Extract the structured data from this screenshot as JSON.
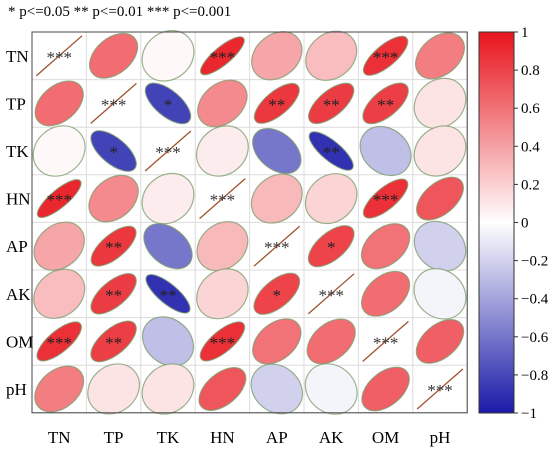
{
  "significance_note": "* p<=0.05  ** p<=0.01  *** p<=0.001",
  "chart_data": {
    "type": "heatmap",
    "variables": [
      "TN",
      "TP",
      "TK",
      "HN",
      "AP",
      "AK",
      "OM",
      "pH"
    ],
    "matrix": [
      [
        1.0,
        0.62,
        0.03,
        0.92,
        0.38,
        0.28,
        0.88,
        0.55
      ],
      [
        0.62,
        1.0,
        -0.82,
        0.5,
        0.85,
        0.83,
        0.82,
        0.12
      ],
      [
        0.03,
        -0.82,
        1.0,
        0.08,
        -0.6,
        -0.9,
        -0.28,
        0.12
      ],
      [
        0.92,
        0.5,
        0.08,
        1.0,
        0.3,
        0.18,
        0.88,
        0.72
      ],
      [
        0.38,
        0.85,
        -0.6,
        0.3,
        1.0,
        0.8,
        0.6,
        -0.2
      ],
      [
        0.28,
        0.83,
        -0.9,
        0.18,
        0.8,
        1.0,
        0.62,
        -0.05
      ],
      [
        0.88,
        0.82,
        -0.28,
        0.88,
        0.6,
        0.62,
        1.0,
        0.68
      ],
      [
        0.55,
        0.12,
        0.12,
        0.72,
        -0.2,
        -0.05,
        0.68,
        1.0
      ]
    ],
    "significance": [
      [
        "***",
        "",
        "",
        "***",
        "",
        "",
        "***",
        ""
      ],
      [
        "",
        "***",
        "*",
        "",
        "**",
        "**",
        "**",
        ""
      ],
      [
        "",
        "*",
        "***",
        "",
        "",
        "**",
        "",
        ""
      ],
      [
        "***",
        "",
        "",
        "***",
        "",
        "",
        "***",
        ""
      ],
      [
        "",
        "**",
        "",
        "",
        "***",
        "*",
        "",
        ""
      ],
      [
        "",
        "**",
        "**",
        "",
        "*",
        "***",
        "",
        ""
      ],
      [
        "***",
        "**",
        "",
        "***",
        "",
        "",
        "***",
        ""
      ],
      [
        "",
        "",
        "",
        "",
        "",
        "",
        "",
        "***"
      ]
    ],
    "colorbar": {
      "range": [
        -1,
        1
      ],
      "ticks": [
        -1,
        -0.8,
        -0.6,
        -0.4,
        -0.2,
        0,
        0.2,
        0.4,
        0.6,
        0.8,
        1
      ],
      "tick_labels": [
        "−1",
        "−0.8",
        "−0.6",
        "−0.4",
        "−0.2",
        "0",
        "0.2",
        "0.4",
        "0.6",
        "0.8",
        "1"
      ],
      "colors": {
        "negative": "#1a1aa8",
        "zero": "#ffffff",
        "positive": "#e8141c"
      }
    },
    "diagonal_line_color": "#a0522d",
    "ellipse_outline_color": "#7a9a6a",
    "grid_color": "#dcdcdc",
    "legend_placement": "right"
  }
}
